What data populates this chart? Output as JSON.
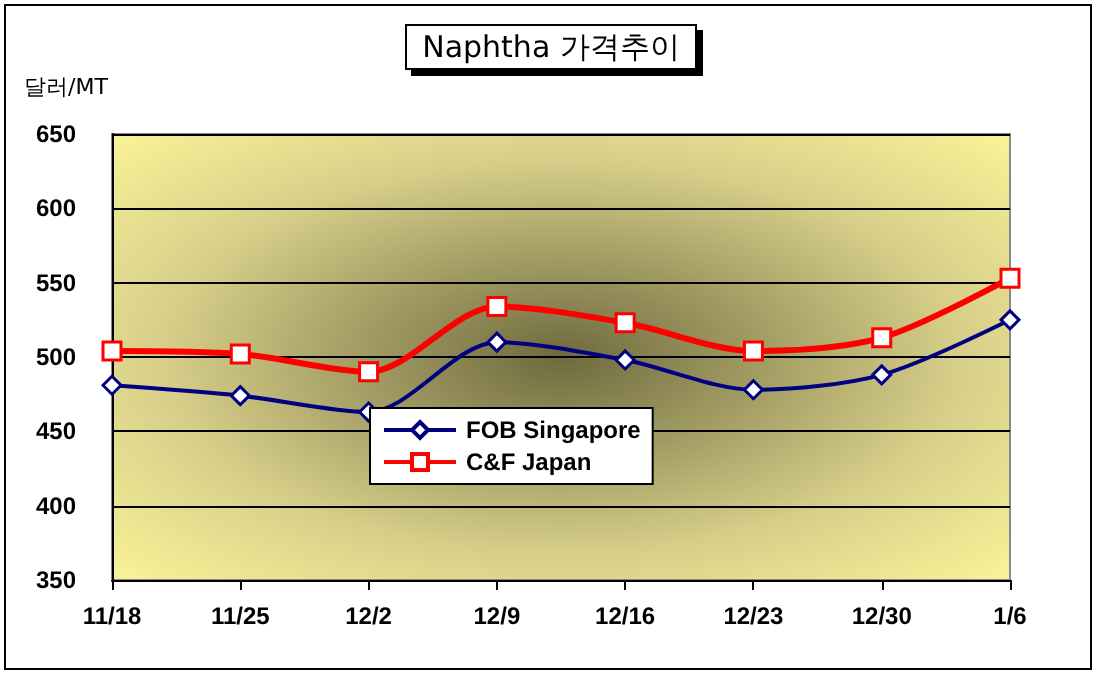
{
  "chart_data": {
    "type": "line",
    "title": "Naphtha 가격추이",
    "ylabel": "달러/MT",
    "categories": [
      "11/18",
      "11/25",
      "12/2",
      "12/9",
      "12/16",
      "12/23",
      "12/30",
      "1/6"
    ],
    "series": [
      {
        "name": "FOB Singapore",
        "color": "#000080",
        "marker": "diamond",
        "values": [
          481,
          474,
          463,
          510,
          498,
          478,
          488,
          525
        ]
      },
      {
        "name": "C&F Japan",
        "color": "#ff0000",
        "marker": "square",
        "values": [
          504,
          502,
          490,
          534,
          523,
          504,
          513,
          553
        ]
      }
    ],
    "ylim": [
      350,
      650
    ],
    "yticks": [
      350,
      400,
      450,
      500,
      550,
      600,
      650
    ],
    "grid": "y",
    "legend": "bottom"
  }
}
